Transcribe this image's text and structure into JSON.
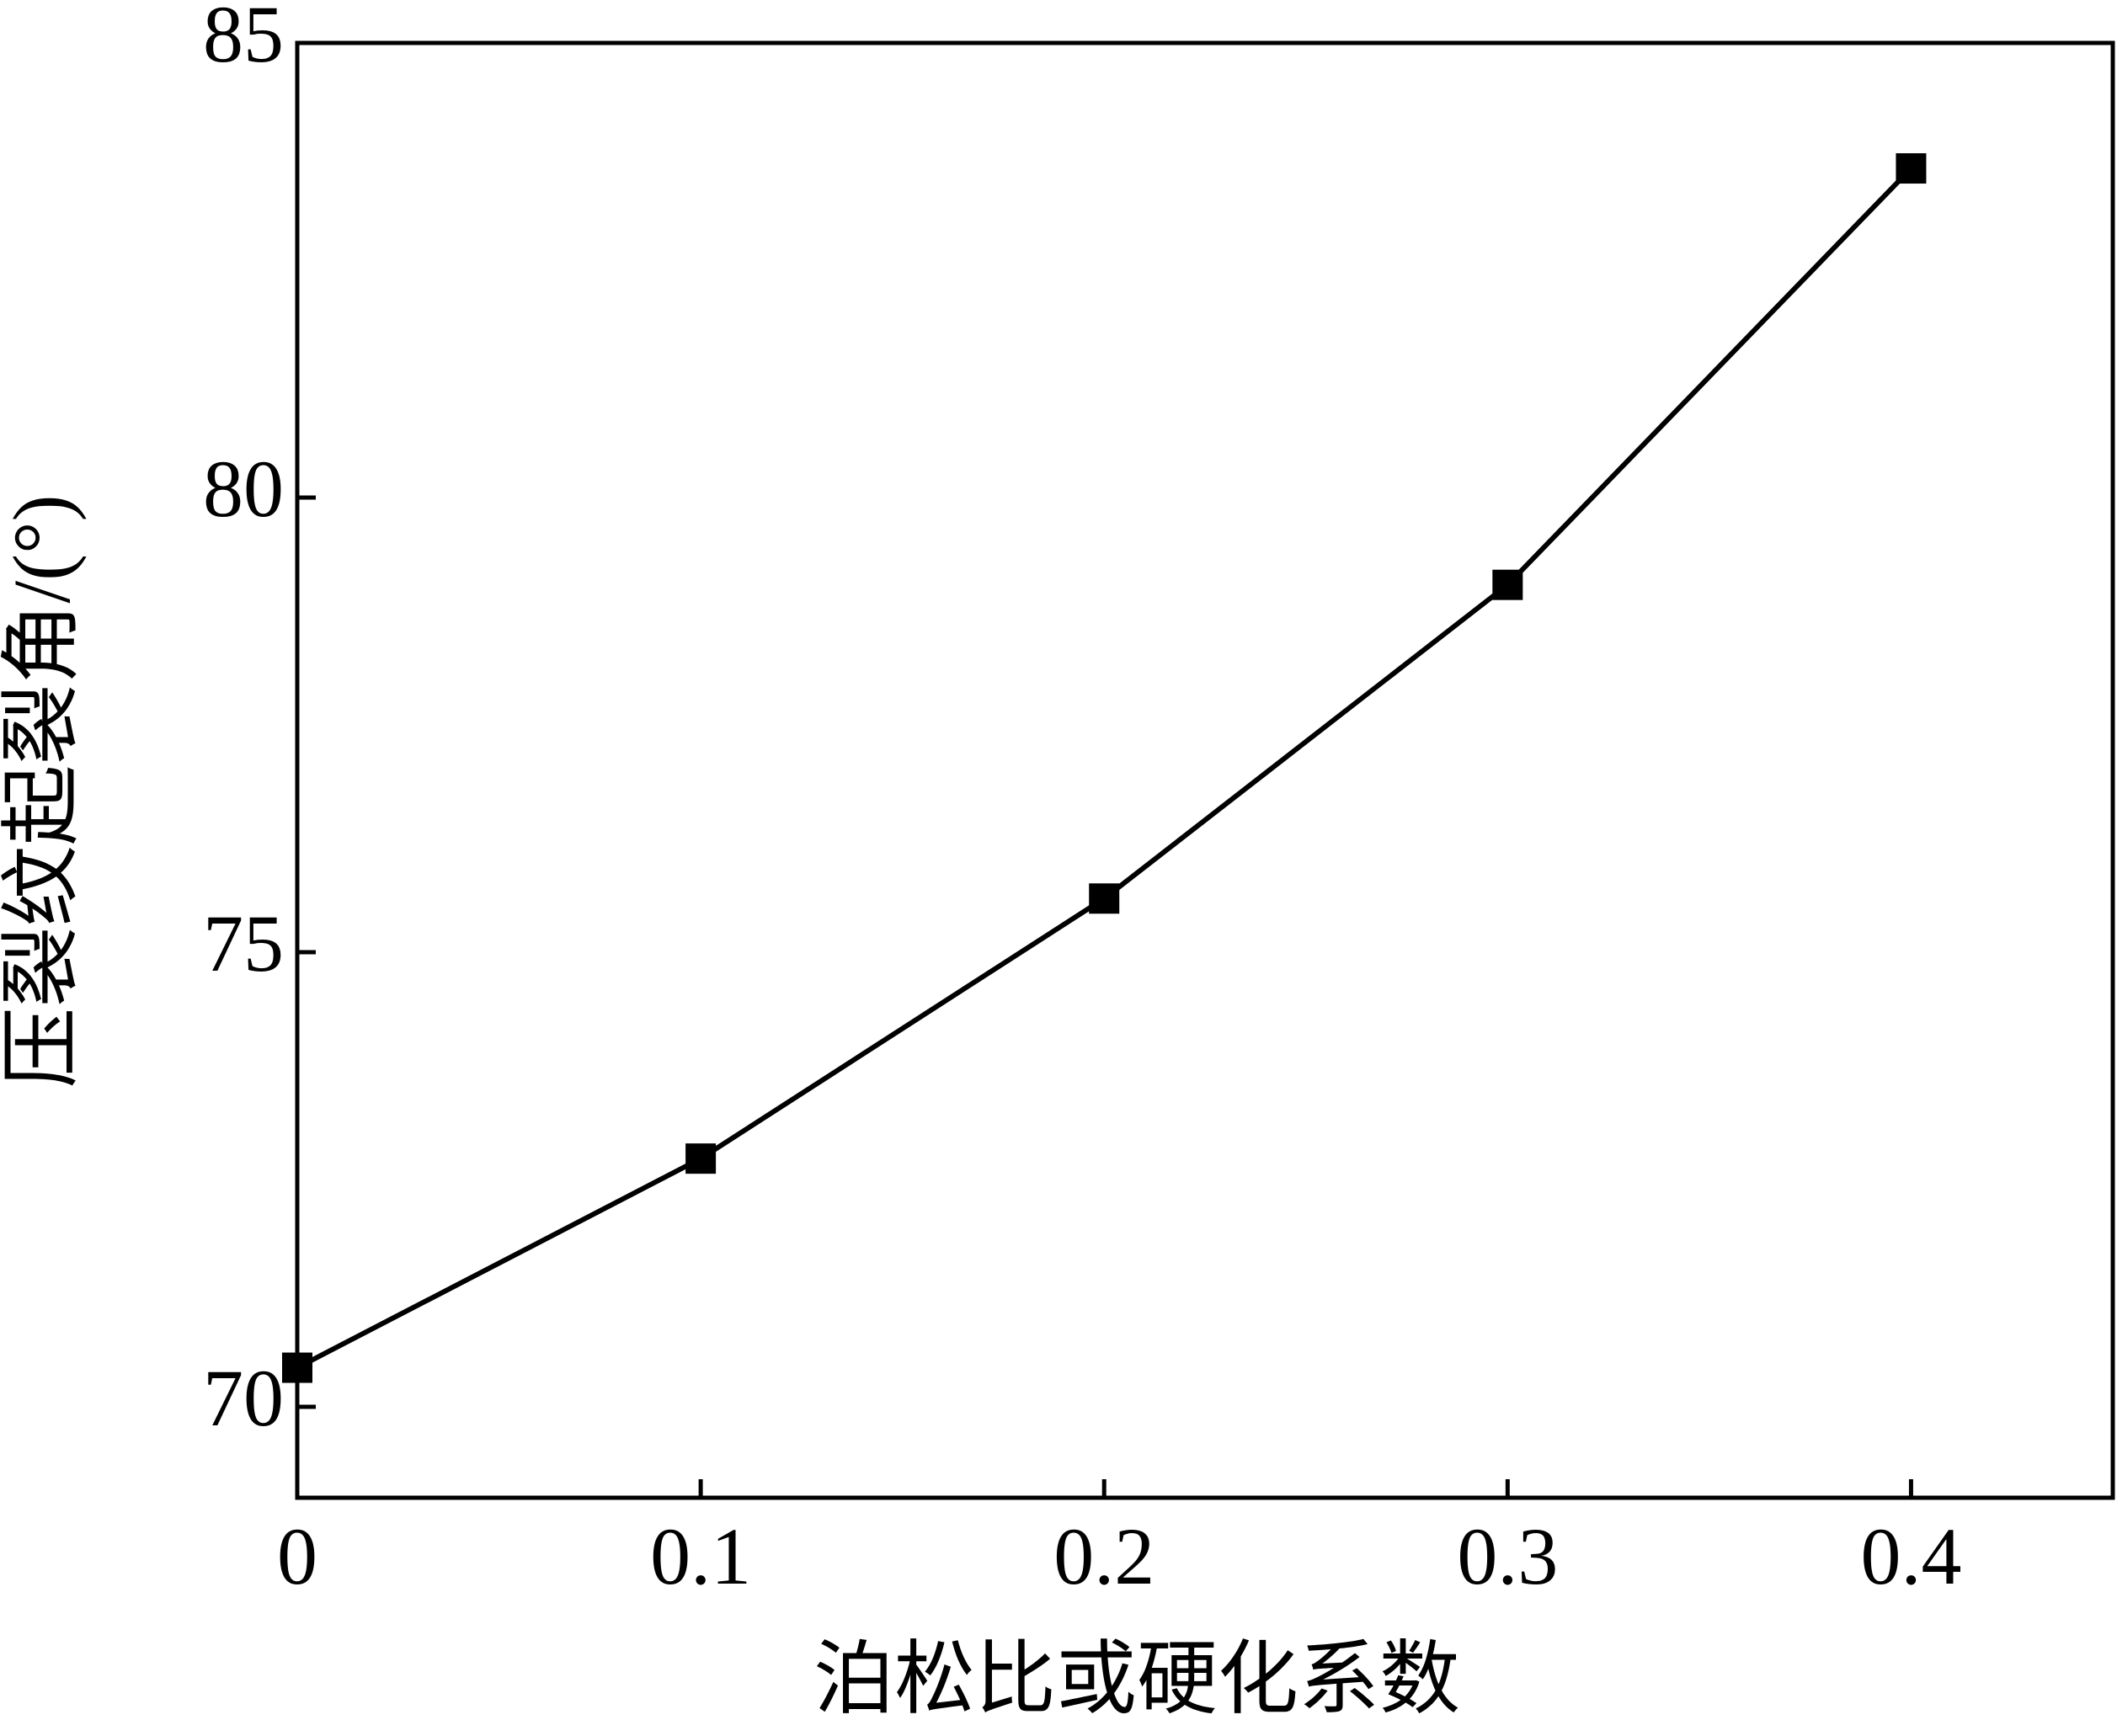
{
  "chart_data": {
    "type": "line",
    "x_label": "泊松比或硬化系数",
    "y_label": "压裂纹起裂角/(°)",
    "x": [
      0,
      0.1,
      0.2,
      0.3,
      0.4
    ],
    "series": [
      {
        "color": "#000000",
        "values": [
          70.43,
          72.73,
          75.59,
          79.04,
          83.62
        ]
      }
    ],
    "xlim": [
      0,
      0.45
    ],
    "ylim": [
      69,
      85
    ],
    "xticks": [
      0,
      0.1,
      0.2,
      0.3,
      0.4
    ],
    "yticks": [
      70,
      75,
      80,
      85
    ]
  }
}
